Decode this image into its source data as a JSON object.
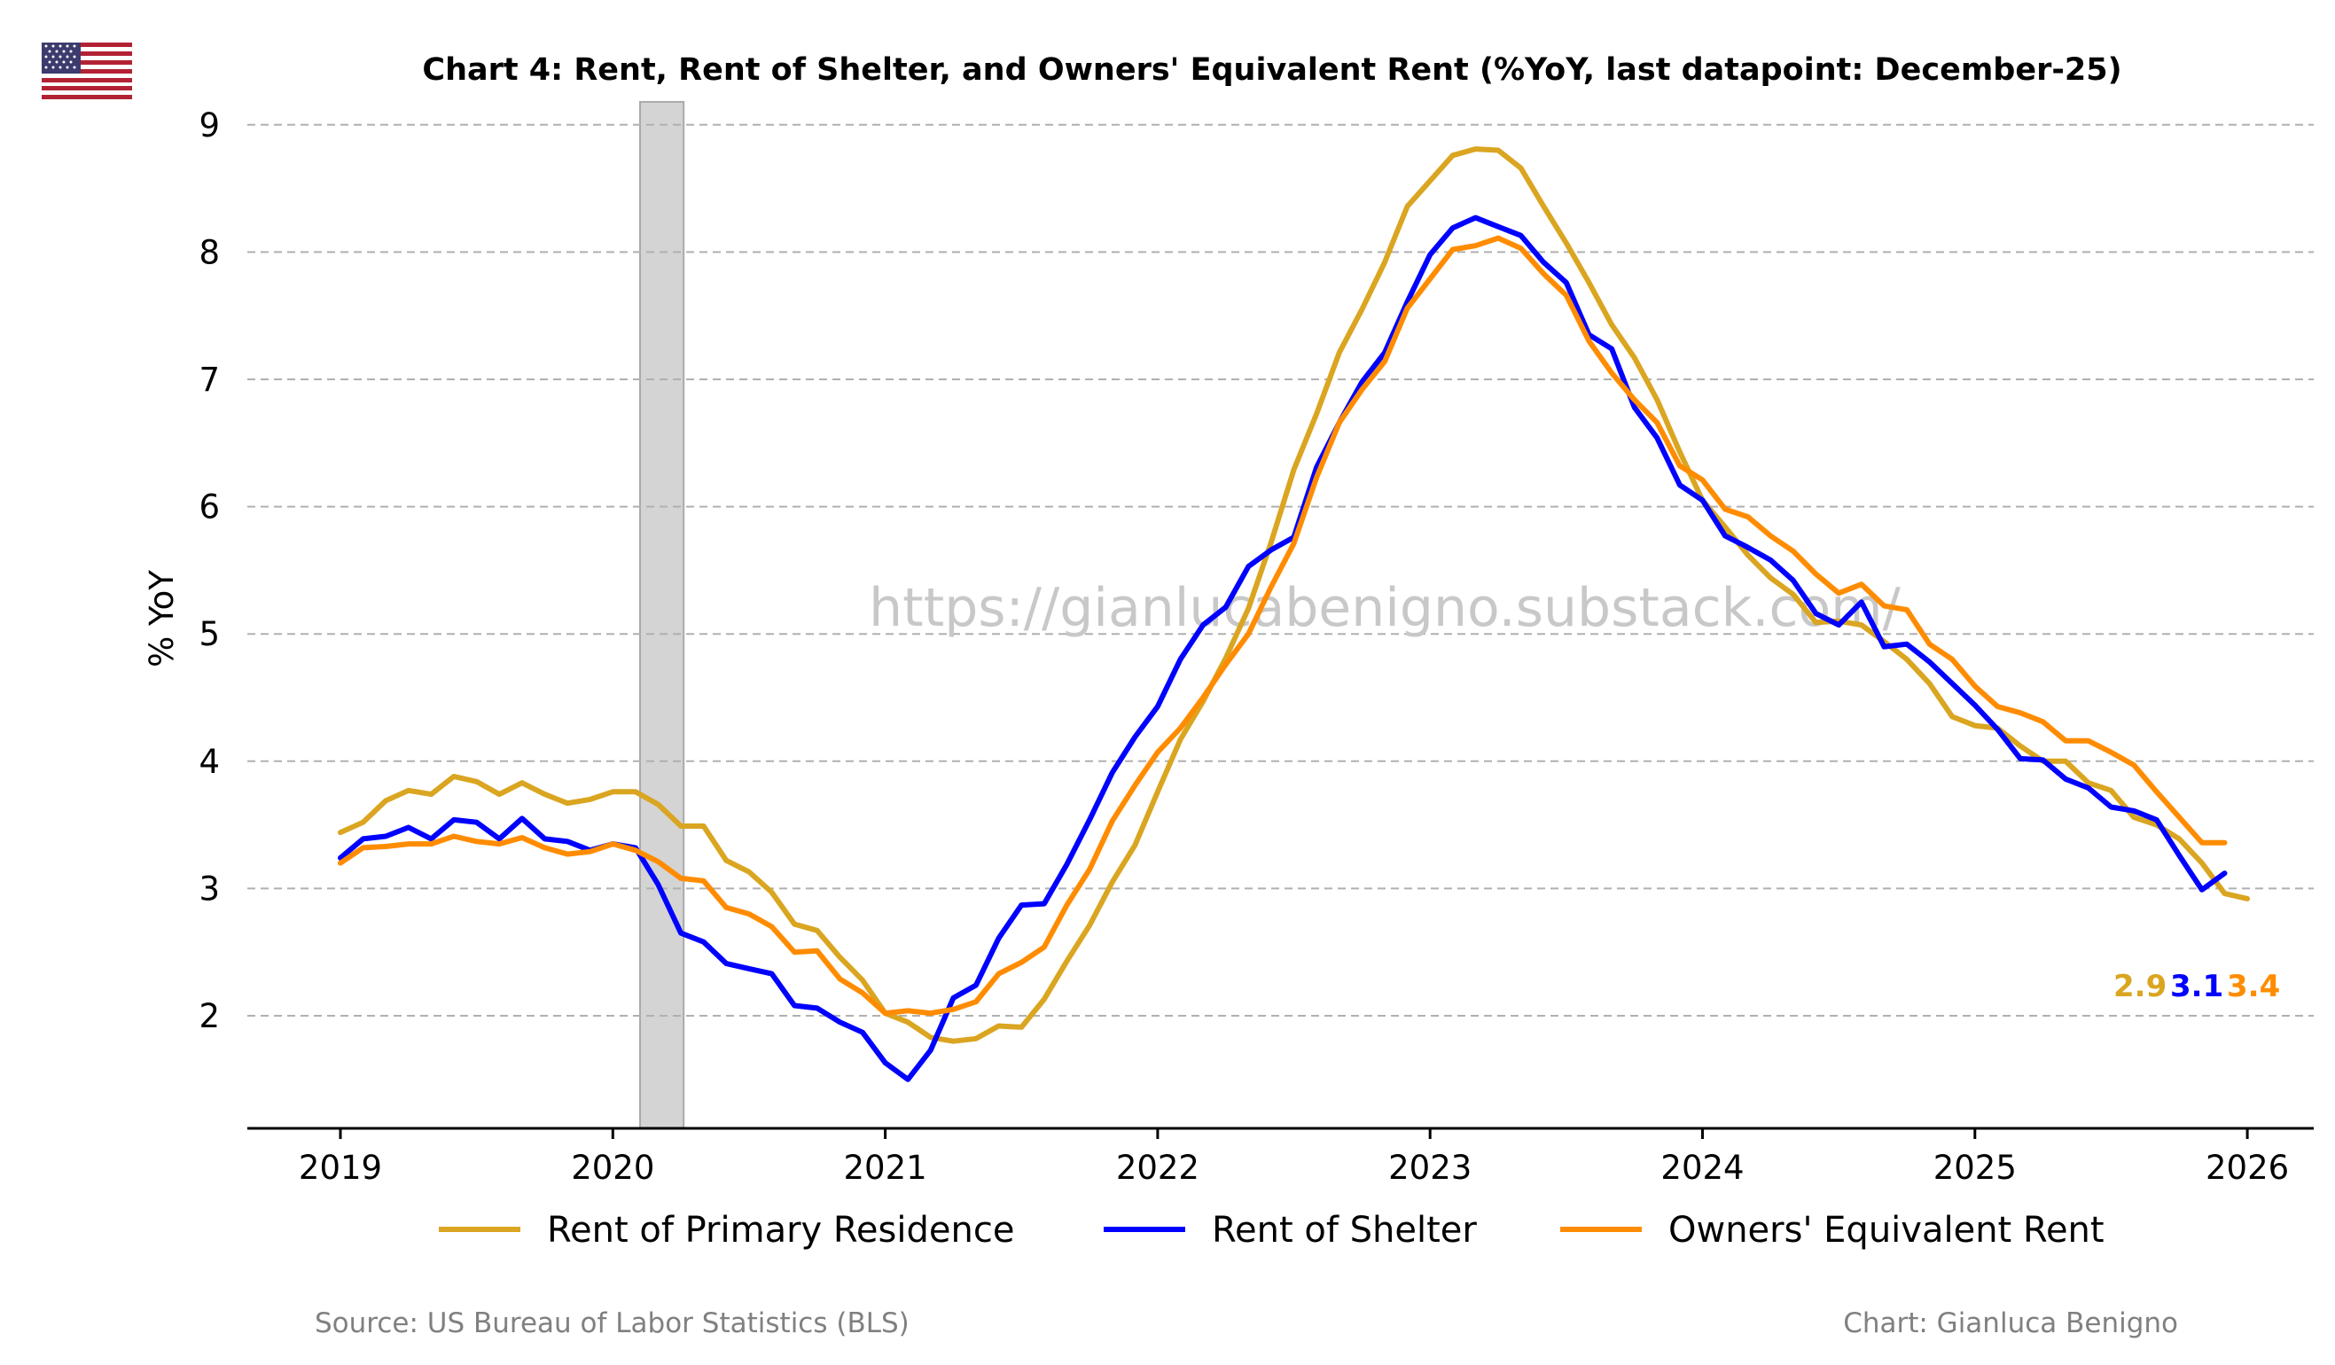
{
  "flag": {
    "icon": "us-flag-icon"
  },
  "chart_data": {
    "type": "line",
    "title": "Chart 4: Rent, Rent of Shelter, and Owners' Equivalent Rent (%YoY, last datapoint: December-25)",
    "xlabel": "",
    "ylabel": "% YoY",
    "xlim": [
      2018.65,
      2026.25
    ],
    "ylim": [
      1.13,
      9.18
    ],
    "x_ticks": [
      2019,
      2020,
      2021,
      2022,
      2023,
      2024,
      2025,
      2026
    ],
    "x_tick_labels": [
      "2019",
      "2020",
      "2021",
      "2022",
      "2023",
      "2024",
      "2025",
      "2026"
    ],
    "y_ticks": [
      2,
      3,
      4,
      5,
      6,
      7,
      8,
      9
    ],
    "y_tick_labels": [
      "2",
      "3",
      "4",
      "5",
      "6",
      "7",
      "8",
      "9"
    ],
    "grid": "horizontal dashed",
    "legend_position": "bottom-center",
    "recession_band": {
      "start": 2020.1,
      "end": 2020.26
    },
    "x_start": 2019.0,
    "x_step_months": 1,
    "series": [
      {
        "name": "Rent of Primary Residence",
        "color": "#DAA520",
        "values": [
          3.44,
          3.52,
          3.69,
          3.77,
          3.74,
          3.88,
          3.84,
          3.74,
          3.83,
          3.74,
          3.67,
          3.7,
          3.76,
          3.76,
          3.66,
          3.49,
          3.49,
          3.22,
          3.13,
          2.97,
          2.72,
          2.67,
          2.46,
          2.28,
          2.02,
          1.95,
          1.83,
          1.8,
          1.82,
          1.92,
          1.91,
          2.13,
          2.43,
          2.71,
          3.05,
          3.34,
          3.76,
          4.17,
          4.47,
          4.81,
          5.2,
          5.72,
          6.29,
          6.73,
          7.21,
          7.55,
          7.92,
          8.36,
          8.56,
          8.76,
          8.81,
          8.8,
          8.66,
          8.36,
          8.07,
          7.76,
          7.43,
          7.17,
          6.84,
          6.43,
          6.05,
          5.84,
          5.62,
          5.44,
          5.31,
          5.09,
          5.1,
          5.07,
          4.94,
          4.8,
          4.61,
          4.35,
          4.28,
          4.26,
          4.12,
          4.0,
          4.0,
          3.83,
          3.77,
          3.56,
          3.5,
          3.39,
          3.2,
          2.96,
          2.92
        ]
      },
      {
        "name": "Rent of Shelter",
        "color": "#0000FF",
        "values": [
          3.24,
          3.39,
          3.41,
          3.48,
          3.39,
          3.54,
          3.52,
          3.39,
          3.55,
          3.39,
          3.37,
          3.3,
          3.35,
          3.32,
          3.03,
          2.65,
          2.58,
          2.41,
          2.37,
          2.33,
          2.08,
          2.06,
          1.95,
          1.87,
          1.63,
          1.5,
          1.73,
          2.14,
          2.24,
          2.61,
          2.87,
          2.88,
          3.19,
          3.54,
          3.91,
          4.19,
          4.43,
          4.8,
          5.07,
          5.21,
          5.53,
          5.66,
          5.76,
          6.31,
          6.66,
          6.98,
          7.21,
          7.61,
          7.98,
          8.19,
          8.27,
          8.2,
          8.13,
          7.92,
          7.76,
          7.35,
          7.24,
          6.78,
          6.54,
          6.17,
          6.05,
          5.77,
          5.68,
          5.58,
          5.42,
          5.16,
          5.07,
          5.25,
          4.9,
          4.92,
          4.78,
          4.61,
          4.44,
          4.25,
          4.02,
          4.01,
          3.86,
          3.79,
          3.64,
          3.61,
          3.54,
          3.26,
          2.99,
          3.12
        ]
      },
      {
        "name": "Owners' Equivalent Rent",
        "color": "#FF8C00",
        "values": [
          3.2,
          3.32,
          3.33,
          3.35,
          3.35,
          3.41,
          3.37,
          3.35,
          3.4,
          3.32,
          3.27,
          3.29,
          3.35,
          3.3,
          3.21,
          3.08,
          3.06,
          2.85,
          2.8,
          2.7,
          2.5,
          2.51,
          2.29,
          2.18,
          2.02,
          2.04,
          2.02,
          2.05,
          2.11,
          2.33,
          2.42,
          2.54,
          2.87,
          3.15,
          3.53,
          3.81,
          4.07,
          4.26,
          4.5,
          4.76,
          5.0,
          5.37,
          5.71,
          6.23,
          6.66,
          6.92,
          7.14,
          7.56,
          7.79,
          8.02,
          8.05,
          8.11,
          8.03,
          7.83,
          7.66,
          7.3,
          7.05,
          6.84,
          6.66,
          6.32,
          6.21,
          5.98,
          5.92,
          5.77,
          5.65,
          5.47,
          5.32,
          5.39,
          5.22,
          5.19,
          4.92,
          4.8,
          4.59,
          4.43,
          4.38,
          4.31,
          4.16,
          4.16,
          4.07,
          3.97,
          3.76,
          3.56,
          3.36,
          3.36
        ]
      }
    ],
    "end_labels": [
      {
        "text": "2.9",
        "color": "#DAA520"
      },
      {
        "text": "3.1",
        "color": "#0000FF"
      },
      {
        "text": "3.4",
        "color": "#FF8C00"
      }
    ],
    "watermark": "https://gianlucabenigno.substack.com/",
    "source": "Source: US Bureau of Labor Statistics (BLS)",
    "credit": "Chart: Gianluca Benigno"
  }
}
